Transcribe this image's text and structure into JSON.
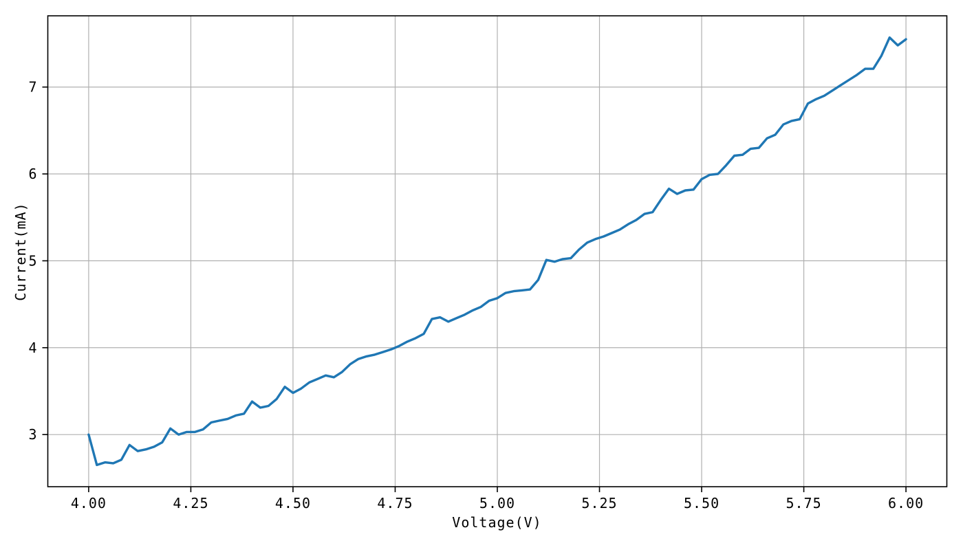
{
  "chart_data": {
    "type": "line",
    "title": "",
    "xlabel": "Voltage(V)",
    "ylabel": "Current(mA)",
    "x_tick_labels": [
      "4.00",
      "4.25",
      "4.50",
      "4.75",
      "5.00",
      "5.25",
      "5.50",
      "5.75",
      "6.00"
    ],
    "x_tick_values": [
      4.0,
      4.25,
      4.5,
      4.75,
      5.0,
      5.25,
      5.5,
      5.75,
      6.0
    ],
    "y_tick_labels": [
      "3",
      "4",
      "5",
      "6",
      "7"
    ],
    "y_tick_values": [
      3,
      4,
      5,
      6,
      7
    ],
    "xlim": [
      3.9,
      6.1
    ],
    "ylim": [
      2.4,
      7.82
    ],
    "grid": true,
    "legend": "none",
    "colors": {
      "line": "#1f77b4",
      "grid": "#b0b0b0",
      "spine": "#000000",
      "background": "#ffffff",
      "tick_text": "#000000"
    },
    "series": [
      {
        "name": "measured-iv-curve",
        "x": [
          4.0,
          4.02,
          4.04,
          4.06,
          4.08,
          4.1,
          4.12,
          4.14,
          4.16,
          4.18,
          4.2,
          4.22,
          4.24,
          4.26,
          4.28,
          4.3,
          4.32,
          4.34,
          4.36,
          4.38,
          4.4,
          4.42,
          4.44,
          4.46,
          4.48,
          4.5,
          4.52,
          4.54,
          4.56,
          4.58,
          4.6,
          4.62,
          4.64,
          4.66,
          4.68,
          4.7,
          4.72,
          4.74,
          4.76,
          4.78,
          4.8,
          4.82,
          4.84,
          4.86,
          4.88,
          4.9,
          4.92,
          4.94,
          4.96,
          4.98,
          5.0,
          5.02,
          5.04,
          5.06,
          5.08,
          5.1,
          5.12,
          5.14,
          5.16,
          5.18,
          5.2,
          5.22,
          5.24,
          5.26,
          5.28,
          5.3,
          5.32,
          5.34,
          5.36,
          5.38,
          5.4,
          5.42,
          5.44,
          5.46,
          5.48,
          5.5,
          5.52,
          5.54,
          5.56,
          5.58,
          5.6,
          5.62,
          5.64,
          5.66,
          5.68,
          5.7,
          5.72,
          5.74,
          5.76,
          5.78,
          5.8,
          5.82,
          5.84,
          5.86,
          5.88,
          5.9,
          5.92,
          5.94,
          5.96,
          5.98,
          6.0
        ],
        "y": [
          3.0,
          2.65,
          2.68,
          2.67,
          2.71,
          2.88,
          2.81,
          2.83,
          2.86,
          2.91,
          3.07,
          3.0,
          3.03,
          3.03,
          3.06,
          3.14,
          3.16,
          3.18,
          3.22,
          3.24,
          3.38,
          3.31,
          3.33,
          3.41,
          3.55,
          3.48,
          3.53,
          3.6,
          3.64,
          3.68,
          3.66,
          3.72,
          3.81,
          3.87,
          3.9,
          3.92,
          3.95,
          3.98,
          4.02,
          4.07,
          4.11,
          4.16,
          4.33,
          4.35,
          4.3,
          4.34,
          4.38,
          4.43,
          4.47,
          4.54,
          4.57,
          4.63,
          4.65,
          4.66,
          4.67,
          4.78,
          5.01,
          4.99,
          5.02,
          5.03,
          5.13,
          5.21,
          5.25,
          5.28,
          5.32,
          5.36,
          5.42,
          5.47,
          5.54,
          5.56,
          5.7,
          5.83,
          5.77,
          5.81,
          5.82,
          5.94,
          5.99,
          6.0,
          6.1,
          6.21,
          6.22,
          6.29,
          6.3,
          6.41,
          6.45,
          6.57,
          6.61,
          6.63,
          6.81,
          6.86,
          6.9,
          6.96,
          7.02,
          7.08,
          7.14,
          7.21,
          7.21,
          7.36,
          7.57,
          7.48,
          7.55
        ]
      }
    ]
  }
}
